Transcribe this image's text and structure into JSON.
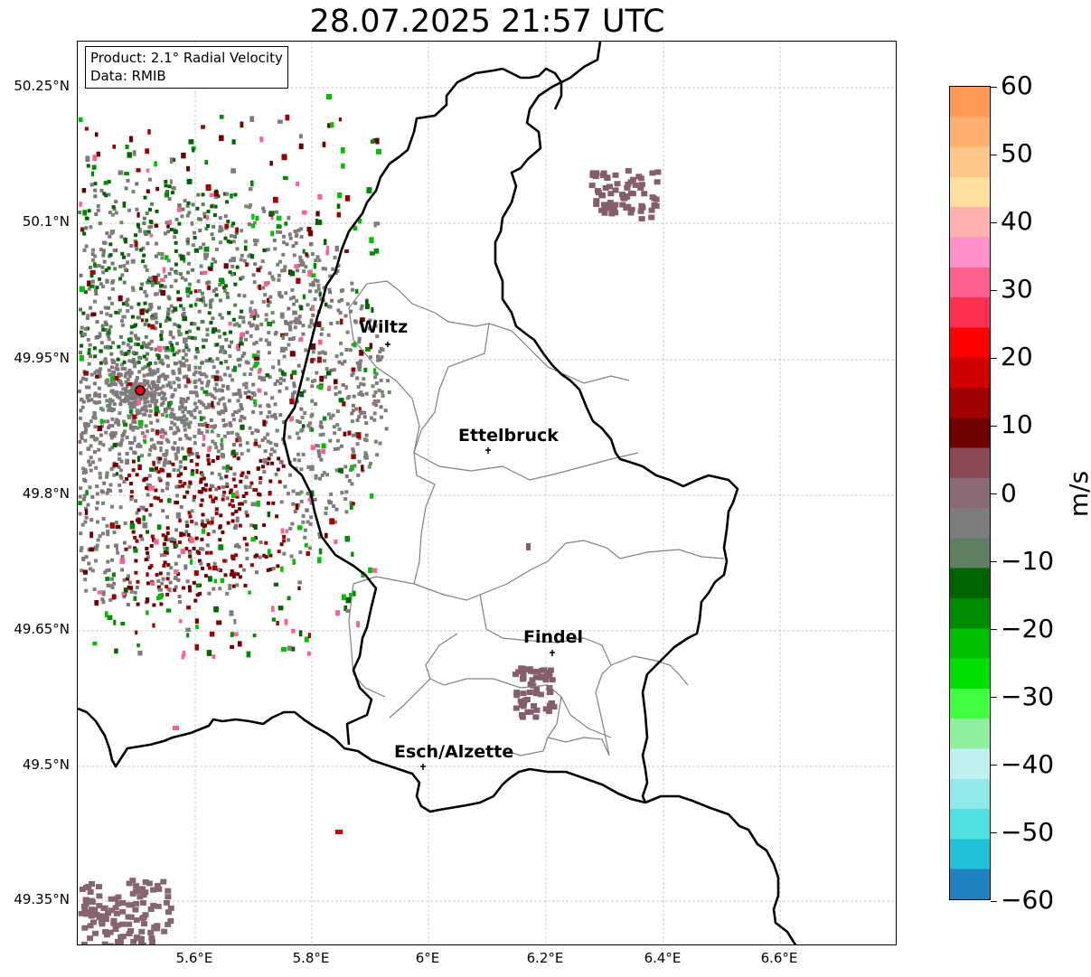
{
  "title": "28.07.2025 21:57 UTC",
  "info": {
    "product": "Product: 2.1° Radial Velocity",
    "data": "Data: RMIB"
  },
  "lat_ticks": [
    "50.25°N",
    "50.1°N",
    "49.95°N",
    "49.8°N",
    "49.65°N",
    "49.5°N",
    "49.35°N"
  ],
  "lon_ticks": [
    "5.6°E",
    "5.8°E",
    "6°E",
    "6.2°E",
    "6.4°E",
    "6.6°E"
  ],
  "cities": [
    {
      "name": "Wiltz"
    },
    {
      "name": "Ettelbruck"
    },
    {
      "name": "Findel"
    },
    {
      "name": "Esch/Alzette"
    }
  ],
  "colorbar": {
    "label": "m/s",
    "min": -60,
    "max": 60,
    "ticks": [
      "60",
      "50",
      "40",
      "30",
      "20",
      "10",
      "0",
      "−10",
      "−20",
      "−30",
      "−40",
      "−50",
      "−60"
    ],
    "colors_top_to_bottom": [
      "#ff9955",
      "#ffb070",
      "#ffc888",
      "#ffe0a0",
      "#ffb0b0",
      "#ff90c8",
      "#ff6090",
      "#ff3050",
      "#ff0000",
      "#d00000",
      "#a00000",
      "#700000",
      "#8b4a55",
      "#8a6a75",
      "#7d7d7d",
      "#5e8060",
      "#006400",
      "#008c00",
      "#00c000",
      "#00e000",
      "#40ff40",
      "#90f0a0",
      "#c0f0f0",
      "#90e8e8",
      "#50e0e0",
      "#20c0d8",
      "#2080c0"
    ]
  },
  "colors": {
    "border": "#000000",
    "canton_lines": "#808080",
    "radar_marker": "#ff0000"
  }
}
